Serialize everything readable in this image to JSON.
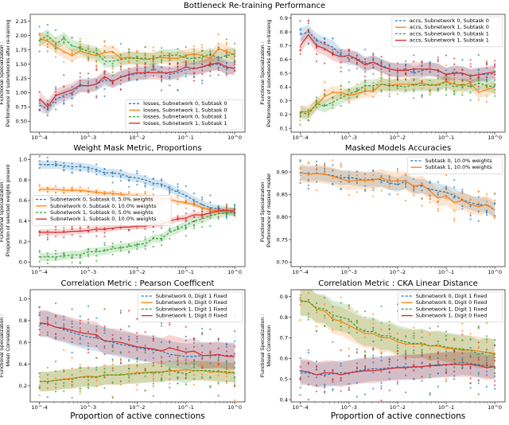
{
  "suptitle": "Bottleneck Re-training Performance",
  "colors": {
    "blue": "#1f77b4",
    "orange": "#ff7f0e",
    "green": "#2ca02c",
    "red": "#d62728"
  },
  "x_tick_labels": [
    "10^-4",
    "10^-3",
    "10^-2",
    "10^-1",
    "10^0"
  ],
  "chart_data": [
    {
      "type": "line",
      "title": "",
      "xlabel": "",
      "xscale": "log",
      "xlim": [
        0.0001,
        1
      ],
      "ylabel": [
        "Functional Specialization :",
        "Performance of subnetworks after re-training"
      ],
      "ylim": [
        0.31,
        2.37
      ],
      "yticks": [
        0.5,
        0.75,
        1.0,
        1.25,
        1.5,
        1.75,
        2.0,
        2.25
      ],
      "ytick_labels": [
        "0.50",
        "0.75",
        "1.00",
        "1.25",
        "1.50",
        "1.75",
        "2.00",
        "2.25"
      ],
      "legend": "lower-right",
      "series": [
        {
          "name": "losses, Subnetwork 0, Subtask 0",
          "color": "blue",
          "dashed": true,
          "band": 0.11,
          "values": [
            0.78,
            0.72,
            0.88,
            0.95,
            1.0,
            1.12,
            1.12,
            1.15,
            1.22,
            1.2,
            1.27,
            1.3,
            1.33,
            1.33,
            1.42,
            1.35,
            1.32,
            1.35,
            1.4,
            1.42,
            1.45,
            1.48,
            1.5,
            1.42,
            1.45
          ]
        },
        {
          "name": "losses, Subnetwork 1, Subtask 0",
          "color": "orange",
          "dashed": false,
          "band": 0.11,
          "values": [
            1.95,
            1.9,
            1.8,
            1.72,
            1.65,
            1.73,
            1.68,
            1.65,
            1.7,
            1.72,
            1.6,
            1.62,
            1.6,
            1.58,
            1.6,
            1.62,
            1.6,
            1.6,
            1.65,
            1.68,
            1.65,
            1.6,
            1.77,
            1.72,
            1.66
          ]
        },
        {
          "name": "losses, Subnetwork 0, Subtask 1",
          "color": "green",
          "dashed": true,
          "band": 0.11,
          "values": [
            1.92,
            2.0,
            1.85,
            1.95,
            1.82,
            1.78,
            1.72,
            1.7,
            1.55,
            1.55,
            1.58,
            1.6,
            1.6,
            1.6,
            1.58,
            1.65,
            1.65,
            1.66,
            1.6,
            1.6,
            1.62,
            1.68,
            1.6,
            1.65,
            1.68
          ]
        },
        {
          "name": "losses, Subnetwork 1, Subtask 1",
          "color": "red",
          "dashed": false,
          "band": 0.12,
          "values": [
            0.9,
            0.75,
            0.95,
            1.0,
            1.05,
            1.13,
            1.12,
            1.15,
            1.28,
            1.2,
            1.27,
            1.32,
            1.35,
            1.35,
            1.35,
            1.35,
            1.35,
            1.38,
            1.45,
            1.42,
            1.45,
            1.5,
            1.52,
            1.45,
            1.42
          ]
        }
      ]
    },
    {
      "type": "line",
      "title": "",
      "xlabel": "",
      "xscale": "log",
      "xlim": [
        0.0001,
        1
      ],
      "ylabel": [
        "Functional Specialization :",
        "Performance of subnetworks after re-training"
      ],
      "ylim": [
        0.072,
        0.928
      ],
      "yticks": [
        0.1,
        0.2,
        0.3,
        0.4,
        0.5,
        0.6,
        0.7,
        0.8,
        0.9
      ],
      "ytick_labels": [
        "0.1",
        "0.2",
        "0.3",
        "0.4",
        "0.5",
        "0.6",
        "0.7",
        "0.8",
        "0.9"
      ],
      "legend": "upper-right",
      "series": [
        {
          "name": "accs, Subnetwork 0, Subtask 0",
          "color": "blue",
          "dashed": true,
          "band": 0.05,
          "values": [
            0.78,
            0.8,
            0.74,
            0.71,
            0.69,
            0.63,
            0.61,
            0.61,
            0.57,
            0.58,
            0.56,
            0.53,
            0.52,
            0.53,
            0.5,
            0.52,
            0.53,
            0.52,
            0.49,
            0.51,
            0.5,
            0.48,
            0.49,
            0.49,
            0.5
          ]
        },
        {
          "name": "accs, Subnetwork 1, Subtask 0",
          "color": "orange",
          "dashed": false,
          "band": 0.045,
          "values": [
            0.22,
            0.22,
            0.27,
            0.33,
            0.36,
            0.36,
            0.34,
            0.35,
            0.37,
            0.37,
            0.42,
            0.41,
            0.42,
            0.42,
            0.42,
            0.43,
            0.41,
            0.42,
            0.44,
            0.42,
            0.41,
            0.43,
            0.36,
            0.38,
            0.4
          ]
        },
        {
          "name": "accs, Subnetwork 0, Subtask 1",
          "color": "green",
          "dashed": true,
          "band": 0.045,
          "values": [
            0.22,
            0.2,
            0.28,
            0.26,
            0.29,
            0.32,
            0.35,
            0.37,
            0.41,
            0.41,
            0.42,
            0.41,
            0.41,
            0.4,
            0.42,
            0.41,
            0.42,
            0.41,
            0.44,
            0.4,
            0.42,
            0.4,
            0.43,
            0.41,
            0.4
          ]
        },
        {
          "name": "accs, Subnetwork 1, Subtask 1",
          "color": "red",
          "dashed": false,
          "band": 0.05,
          "values": [
            0.7,
            0.78,
            0.7,
            0.68,
            0.64,
            0.62,
            0.63,
            0.6,
            0.56,
            0.58,
            0.55,
            0.53,
            0.52,
            0.52,
            0.53,
            0.53,
            0.53,
            0.52,
            0.49,
            0.5,
            0.5,
            0.48,
            0.49,
            0.5,
            0.51
          ]
        }
      ]
    },
    {
      "type": "line",
      "title": "Weight Mask Metric, Proportions",
      "xlabel": "",
      "xscale": "log",
      "xlim": [
        0.0001,
        1
      ],
      "ylabel": [
        "Functional Specialization :",
        "Proportion of selected weights present"
      ],
      "ylim": [
        -0.045,
        1.05
      ],
      "yticks": [
        0,
        0.2,
        0.4,
        0.6,
        0.8,
        1.0
      ],
      "ytick_labels": [
        "0.0",
        "0.2",
        "0.4",
        "0.6",
        "0.8",
        "1.0"
      ],
      "legend": "center-left",
      "series": [
        {
          "name": "Subnetwork 0, Subtask 0, 5.0% weights",
          "color": "blue",
          "dashed": true,
          "band": 0.04,
          "values": [
            0.95,
            0.95,
            0.95,
            0.94,
            0.93,
            0.93,
            0.92,
            0.9,
            0.87,
            0.87,
            0.86,
            0.83,
            0.82,
            0.8,
            0.77,
            0.76,
            0.72,
            0.68,
            0.65,
            0.6,
            0.56,
            0.53,
            0.52,
            0.5,
            0.49
          ]
        },
        {
          "name": "Subnetwork 0, Subtask 0, 10.0% weights",
          "color": "orange",
          "dashed": false,
          "band": 0.025,
          "values": [
            0.71,
            0.71,
            0.71,
            0.7,
            0.7,
            0.7,
            0.69,
            0.68,
            0.67,
            0.67,
            0.66,
            0.65,
            0.65,
            0.64,
            0.63,
            0.62,
            0.61,
            0.59,
            0.58,
            0.56,
            0.53,
            0.51,
            0.5,
            0.5,
            0.49
          ]
        },
        {
          "name": "Subnetwork 1, Subtask 0, 5.0% weights",
          "color": "green",
          "dashed": true,
          "band": 0.04,
          "values": [
            0.05,
            0.05,
            0.05,
            0.06,
            0.07,
            0.07,
            0.1,
            0.1,
            0.11,
            0.13,
            0.14,
            0.15,
            0.17,
            0.18,
            0.23,
            0.23,
            0.29,
            0.32,
            0.36,
            0.4,
            0.42,
            0.45,
            0.47,
            0.48,
            0.49
          ]
        },
        {
          "name": "Subnetwork 1, Subtask 0, 10.0% weights",
          "color": "red",
          "dashed": false,
          "band": 0.03,
          "values": [
            0.29,
            0.29,
            0.29,
            0.29,
            0.3,
            0.3,
            0.31,
            0.32,
            0.32,
            0.33,
            0.34,
            0.34,
            0.35,
            0.35,
            0.37,
            0.37,
            0.4,
            0.42,
            0.43,
            0.46,
            0.46,
            0.48,
            0.5,
            0.5,
            0.5
          ]
        }
      ]
    },
    {
      "type": "line",
      "title": "Masked Models Accuracies",
      "xlabel": "",
      "xscale": "log",
      "xlim": [
        0.0001,
        1
      ],
      "ylabel": [
        "Functional Specialization :",
        "Performance of masked model"
      ],
      "ylim": [
        0.69,
        0.939
      ],
      "yticks": [
        0.7,
        0.75,
        0.8,
        0.85,
        0.9
      ],
      "ytick_labels": [
        "0.70",
        "0.75",
        "0.80",
        "0.85",
        "0.90"
      ],
      "legend": "upper-right",
      "series": [
        {
          "name": "Subtask 0, 10.0% weights",
          "color": "blue",
          "dashed": true,
          "band": 0.016,
          "values": [
            0.899,
            0.895,
            0.897,
            0.895,
            0.892,
            0.887,
            0.888,
            0.885,
            0.882,
            0.884,
            0.883,
            0.876,
            0.872,
            0.879,
            0.868,
            0.869,
            0.862,
            0.858,
            0.855,
            0.848,
            0.838,
            0.832,
            0.827,
            0.827,
            0.815
          ]
        },
        {
          "name": "Subtask 1, 10.0% weights",
          "color": "orange",
          "dashed": false,
          "band": 0.02,
          "values": [
            0.898,
            0.895,
            0.896,
            0.895,
            0.89,
            0.885,
            0.879,
            0.882,
            0.881,
            0.882,
            0.887,
            0.88,
            0.88,
            0.88,
            0.868,
            0.872,
            0.858,
            0.842,
            0.847,
            0.832,
            0.837,
            0.828,
            0.823,
            0.828,
            0.816
          ]
        }
      ]
    },
    {
      "type": "line",
      "title": "Correlation Metric : Pearson Coefficent",
      "xlabel": "Proportion of active connections",
      "xscale": "log",
      "xlim": [
        0.0001,
        1
      ],
      "ylabel": [
        "Functional Specialization :",
        "Mean Correlation"
      ],
      "ylim": [
        0.052,
        1.085
      ],
      "yticks": [
        0.2,
        0.4,
        0.6,
        0.8,
        1.0
      ],
      "ytick_labels": [
        "0.2",
        "0.4",
        "0.6",
        "0.8",
        "1.0"
      ],
      "legend": "upper-right",
      "series": [
        {
          "name": "Subnetwork 0, Digit 1 Fixed",
          "color": "blue",
          "dashed": true,
          "band": 0.12,
          "values": [
            0.77,
            0.77,
            0.74,
            0.72,
            0.69,
            0.67,
            0.65,
            0.64,
            0.62,
            0.6,
            0.58,
            0.57,
            0.55,
            0.54,
            0.53,
            0.52,
            0.49,
            0.48,
            0.47,
            0.47,
            0.48,
            0.48,
            0.48,
            0.48,
            0.48
          ]
        },
        {
          "name": "Subnetwork 0, Digit 0 Fixed",
          "color": "orange",
          "dashed": false,
          "band": 0.09,
          "values": [
            0.24,
            0.24,
            0.25,
            0.26,
            0.27,
            0.28,
            0.29,
            0.28,
            0.3,
            0.3,
            0.3,
            0.31,
            0.32,
            0.32,
            0.33,
            0.33,
            0.34,
            0.34,
            0.35,
            0.34,
            0.34,
            0.33,
            0.33,
            0.32,
            0.32
          ]
        },
        {
          "name": "Subnetwork 1, Digit 1 Fixed",
          "color": "green",
          "dashed": true,
          "band": 0.09,
          "values": [
            0.24,
            0.24,
            0.25,
            0.26,
            0.26,
            0.28,
            0.28,
            0.28,
            0.3,
            0.3,
            0.3,
            0.31,
            0.31,
            0.32,
            0.32,
            0.32,
            0.34,
            0.33,
            0.31,
            0.34,
            0.34,
            0.34,
            0.33,
            0.33,
            0.32
          ]
        },
        {
          "name": "Subnetwork 1, Digit 0 Fixed",
          "color": "red",
          "dashed": false,
          "band": 0.12,
          "values": [
            0.78,
            0.77,
            0.74,
            0.73,
            0.71,
            0.69,
            0.68,
            0.67,
            0.61,
            0.61,
            0.6,
            0.58,
            0.56,
            0.55,
            0.54,
            0.52,
            0.55,
            0.53,
            0.51,
            0.52,
            0.48,
            0.48,
            0.49,
            0.47,
            0.47
          ]
        }
      ]
    },
    {
      "type": "line",
      "title": "Correlation Metric : CKA Linear Distance",
      "xlabel": "Proportion of active connections",
      "xscale": "log",
      "xlim": [
        0.0001,
        1
      ],
      "ylabel": [
        "Functional Specialization :",
        "Mean Correlation"
      ],
      "ylim": [
        0.389,
        0.933
      ],
      "yticks": [
        0.4,
        0.5,
        0.6,
        0.7,
        0.8,
        0.9
      ],
      "ytick_labels": [
        "0.4",
        "0.5",
        "0.6",
        "0.7",
        "0.8",
        "0.9"
      ],
      "legend": "upper-right",
      "series": [
        {
          "name": "Subnetwork 0, Digit 1 Fixed",
          "color": "blue",
          "dashed": true,
          "band": 0.06,
          "values": [
            0.53,
            0.53,
            0.52,
            0.52,
            0.525,
            0.53,
            0.53,
            0.54,
            0.545,
            0.55,
            0.55,
            0.555,
            0.555,
            0.56,
            0.555,
            0.56,
            0.565,
            0.57,
            0.57,
            0.575,
            0.58,
            0.575,
            0.57,
            0.565,
            0.56
          ]
        },
        {
          "name": "Subnetwork 0, Digit 0 Fixed",
          "color": "orange",
          "dashed": false,
          "band": 0.07,
          "values": [
            0.88,
            0.875,
            0.84,
            0.83,
            0.79,
            0.78,
            0.76,
            0.74,
            0.72,
            0.72,
            0.7,
            0.7,
            0.68,
            0.67,
            0.67,
            0.67,
            0.66,
            0.66,
            0.65,
            0.645,
            0.64,
            0.64,
            0.635,
            0.63,
            0.625
          ]
        },
        {
          "name": "Subnetwork 1, Digit 1 Fixed",
          "color": "green",
          "dashed": true,
          "band": 0.07,
          "values": [
            0.875,
            0.875,
            0.845,
            0.84,
            0.81,
            0.8,
            0.79,
            0.75,
            0.73,
            0.73,
            0.71,
            0.71,
            0.69,
            0.68,
            0.67,
            0.675,
            0.66,
            0.665,
            0.655,
            0.65,
            0.645,
            0.64,
            0.62,
            0.63,
            0.62
          ]
        },
        {
          "name": "Subnetwork 1, Digit 0 Fixed",
          "color": "red",
          "dashed": false,
          "band": 0.06,
          "values": [
            0.54,
            0.535,
            0.52,
            0.53,
            0.53,
            0.52,
            0.53,
            0.535,
            0.54,
            0.54,
            0.545,
            0.55,
            0.555,
            0.555,
            0.56,
            0.56,
            0.565,
            0.565,
            0.57,
            0.57,
            0.57,
            0.57,
            0.565,
            0.555,
            0.56
          ]
        }
      ]
    }
  ]
}
